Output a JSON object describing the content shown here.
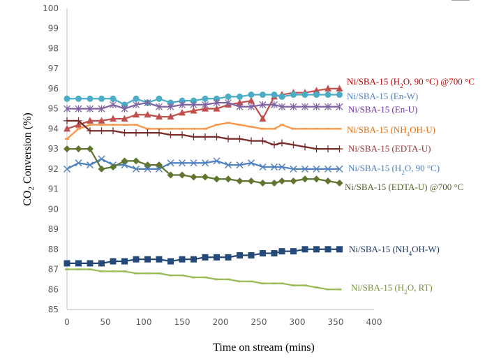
{
  "chart_data": {
    "type": "line",
    "title": "",
    "xlabel": "Time on stream (mins)",
    "ylabel_parts": [
      "CO",
      "2",
      " Conversion (%)"
    ],
    "ylabel": "CO2 Conversion (%)",
    "xlim": [
      0,
      400
    ],
    "ylim": [
      85,
      100
    ],
    "x_ticks": [
      0,
      50,
      100,
      150,
      200,
      250,
      300,
      350,
      400
    ],
    "y_ticks": [
      85,
      86,
      87,
      88,
      89,
      90,
      91,
      92,
      93,
      94,
      95,
      96,
      97,
      98,
      99,
      100
    ],
    "grid": false,
    "legend_placement": "right, inline at line ends",
    "x": [
      0,
      15,
      30,
      45,
      60,
      75,
      90,
      105,
      120,
      135,
      150,
      165,
      180,
      195,
      210,
      225,
      240,
      255,
      270,
      280,
      295,
      310,
      325,
      340,
      355
    ],
    "series": [
      {
        "name": "Ni/SBA-15 (H2O, 90 °C) @700 °C",
        "label_parts": [
          [
            "Ni/SBA-15 (H",
            false
          ],
          [
            "2",
            true
          ],
          [
            "O, 90 °C) @700 °C",
            false
          ]
        ],
        "color": "#c0504d",
        "label_color": "#c00000",
        "marker": "triangle",
        "values": [
          94.0,
          94.2,
          94.4,
          94.4,
          94.5,
          94.5,
          94.7,
          94.7,
          94.6,
          94.6,
          94.8,
          94.9,
          95.0,
          95.0,
          95.2,
          95.3,
          95.4,
          94.5,
          95.6,
          95.7,
          95.8,
          95.8,
          95.9,
          96.0,
          96.0
        ]
      },
      {
        "name": "Ni/SBA-15 (En-W)",
        "label_parts": [
          [
            "Ni/SBA-15 (En-W)",
            false
          ]
        ],
        "color": "#4bacc6",
        "label_color": "#4f81bd",
        "marker": "circle",
        "values": [
          95.5,
          95.5,
          95.5,
          95.5,
          95.5,
          95.2,
          95.5,
          95.3,
          95.5,
          95.3,
          95.4,
          95.4,
          95.5,
          95.5,
          95.6,
          95.6,
          95.7,
          95.7,
          95.7,
          95.6,
          95.7,
          95.7,
          95.7,
          95.7,
          95.7
        ]
      },
      {
        "name": "Ni/SBA-15 (En-U)",
        "label_parts": [
          [
            "Ni/SBA-15 (En-U)",
            false
          ]
        ],
        "color": "#8064a2",
        "label_color": "#7030a0",
        "marker": "asterisk",
        "values": [
          95.0,
          95.0,
          95.0,
          95.0,
          95.2,
          95.0,
          95.2,
          95.3,
          95.1,
          95.1,
          95.2,
          95.2,
          95.2,
          95.3,
          95.3,
          95.1,
          95.1,
          95.2,
          95.2,
          95.1,
          95.1,
          95.1,
          95.1,
          95.1,
          95.1
        ]
      },
      {
        "name": "Ni/SBA-15 (NH4OH-U)",
        "label_parts": [
          [
            "Ni/SBA-15 (NH",
            false
          ],
          [
            "4",
            true
          ],
          [
            "OH-U)",
            false
          ]
        ],
        "color": "#f79646",
        "label_color": "#e46c0a",
        "marker": "dash",
        "values": [
          93.5,
          94.0,
          94.2,
          94.2,
          94.2,
          94.2,
          94.2,
          94.0,
          94.0,
          94.0,
          94.0,
          94.0,
          94.0,
          94.2,
          94.3,
          94.2,
          94.1,
          94.0,
          94.0,
          94.2,
          94.0,
          94.0,
          94.0,
          94.0,
          94.0
        ]
      },
      {
        "name": "Ni/SBA-15 (EDTA-U)",
        "label_parts": [
          [
            "Ni/SBA-15 (EDTA-U)",
            false
          ]
        ],
        "color": "#772c2a",
        "label_color": "#943634",
        "marker": "plus",
        "values": [
          94.4,
          94.4,
          93.9,
          93.9,
          93.9,
          93.8,
          93.8,
          93.8,
          93.8,
          93.7,
          93.7,
          93.6,
          93.6,
          93.6,
          93.5,
          93.5,
          93.4,
          93.4,
          93.2,
          93.3,
          93.2,
          93.1,
          93.0,
          93.0,
          93.0
        ]
      },
      {
        "name": "Ni/SBA-15 (H2O, 90 °C)",
        "label_parts": [
          [
            "Ni/SBA-15 (H",
            false
          ],
          [
            "2",
            true
          ],
          [
            "O, 90 °C)",
            false
          ]
        ],
        "color": "#4f81bd",
        "label_color": "#4f81bd",
        "marker": "x",
        "values": [
          92.0,
          92.3,
          92.2,
          92.5,
          92.2,
          92.2,
          92.0,
          92.0,
          92.0,
          92.3,
          92.3,
          92.3,
          92.3,
          92.4,
          92.2,
          92.2,
          92.3,
          92.1,
          92.1,
          92.1,
          92.0,
          92.0,
          92.0,
          92.0,
          92.0
        ]
      },
      {
        "name": "Ni/SBA-15 (EDTA-U) @700 °C",
        "label_parts": [
          [
            "Ni/SBA-15 (EDTA-U) @700 °C",
            false
          ]
        ],
        "color": "#5f7530",
        "label_color": "#4f6228",
        "marker": "diamond",
        "values": [
          93.0,
          93.0,
          93.0,
          92.0,
          92.1,
          92.4,
          92.4,
          92.2,
          92.2,
          91.7,
          91.7,
          91.6,
          91.6,
          91.5,
          91.5,
          91.4,
          91.4,
          91.3,
          91.3,
          91.4,
          91.4,
          91.5,
          91.5,
          91.4,
          91.3
        ]
      },
      {
        "name": "Ni/SBA-15 (NH4OH-W)",
        "label_parts": [
          [
            "Ni/SBA-15 (NH",
            false
          ],
          [
            "4",
            true
          ],
          [
            "OH-W)",
            false
          ]
        ],
        "color": "#254a7a",
        "label_color": "#1f3864",
        "marker": "square",
        "values": [
          87.3,
          87.3,
          87.3,
          87.3,
          87.4,
          87.4,
          87.5,
          87.5,
          87.5,
          87.4,
          87.5,
          87.5,
          87.6,
          87.6,
          87.6,
          87.7,
          87.7,
          87.8,
          87.8,
          87.9,
          87.9,
          88.0,
          88.0,
          88.0,
          88.0
        ]
      },
      {
        "name": "Ni/SBA-15 (H2O, RT)",
        "label_parts": [
          [
            "Ni/SBA-15 (H",
            false
          ],
          [
            "2",
            true
          ],
          [
            "O, RT)",
            false
          ]
        ],
        "color": "#9bbb59",
        "label_color": "#76923c",
        "marker": "dash",
        "values": [
          87.0,
          87.0,
          87.0,
          86.9,
          86.9,
          86.9,
          86.8,
          86.8,
          86.8,
          86.7,
          86.7,
          86.6,
          86.6,
          86.5,
          86.5,
          86.4,
          86.4,
          86.3,
          86.3,
          86.3,
          86.2,
          86.2,
          86.1,
          86.0,
          86.0
        ]
      }
    ]
  }
}
